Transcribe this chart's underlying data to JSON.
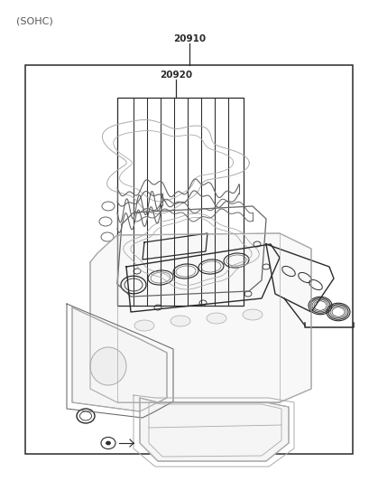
{
  "title": "(SOHC)",
  "label_20910": "20910",
  "label_20920": "20920",
  "bg_color": "#ffffff",
  "line_color_dark": "#2a2a2a",
  "line_color_light": "#aaaaaa",
  "line_color_med": "#666666",
  "text_color": "#555555"
}
